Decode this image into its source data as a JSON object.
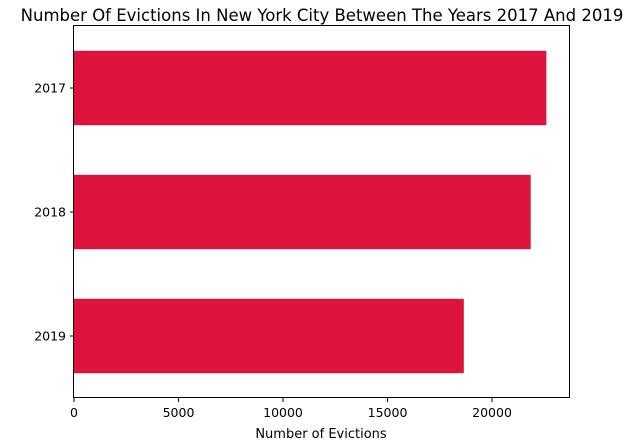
{
  "chart_data": {
    "type": "bar",
    "orientation": "horizontal",
    "title": "Number Of Evictions In New York City Between The Years 2017 And 2019",
    "xlabel": "Number of Evictions",
    "ylabel": "",
    "categories": [
      "2017",
      "2018",
      "2019"
    ],
    "values": [
      22600,
      21850,
      18650
    ],
    "xlim": [
      0,
      23730
    ],
    "xticks": [
      0,
      5000,
      10000,
      15000,
      20000
    ],
    "xtick_labels": [
      "0",
      "5000",
      "10000",
      "15000",
      "20000"
    ],
    "bar_color": "#dc143c",
    "grid": false,
    "legend": "none"
  }
}
